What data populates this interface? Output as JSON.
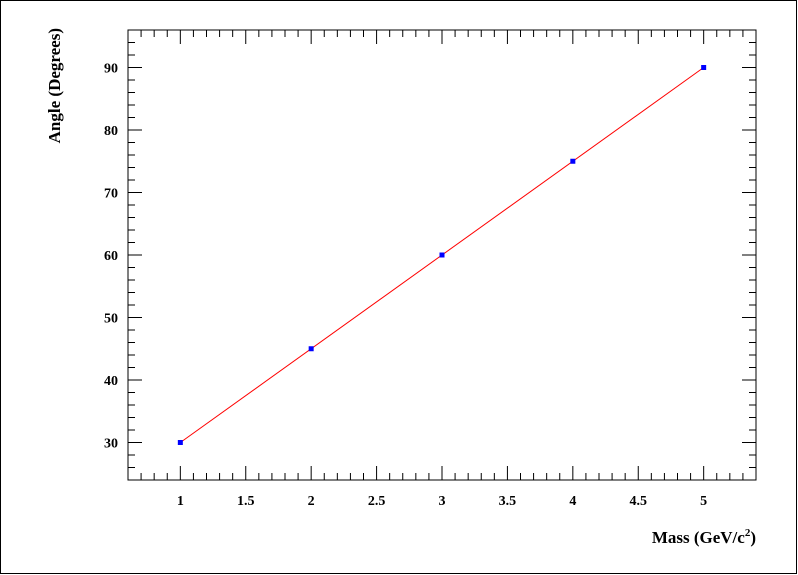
{
  "chart_data": {
    "type": "scatter",
    "title": "",
    "xlabel": "Mass (GeV/c",
    "xlabel_sup": "2",
    "xlabel_close": ")",
    "ylabel": "Angle (Degrees)",
    "xlim": [
      0.6,
      5.4
    ],
    "ylim": [
      24,
      96
    ],
    "x_major_ticks": [
      1,
      1.5,
      2,
      2.5,
      3,
      3.5,
      4,
      4.5,
      5
    ],
    "x_tick_labels": [
      "1",
      "1.5",
      "2",
      "2.5",
      "3",
      "3.5",
      "4",
      "4.5",
      "5"
    ],
    "x_minor_step": 0.1,
    "y_major_ticks": [
      30,
      40,
      50,
      60,
      70,
      80,
      90
    ],
    "y_tick_labels": [
      "30",
      "40",
      "50",
      "60",
      "70",
      "80",
      "90"
    ],
    "y_minor_step": 2,
    "grid": false,
    "series": [
      {
        "x": [
          1,
          2,
          3,
          4,
          5
        ],
        "y": [
          30,
          45,
          60,
          75,
          90
        ],
        "marker_color": "#0000ff"
      }
    ],
    "fit_line": {
      "x": [
        1,
        5
      ],
      "y": [
        30,
        90
      ],
      "color": "#ff0000"
    }
  }
}
